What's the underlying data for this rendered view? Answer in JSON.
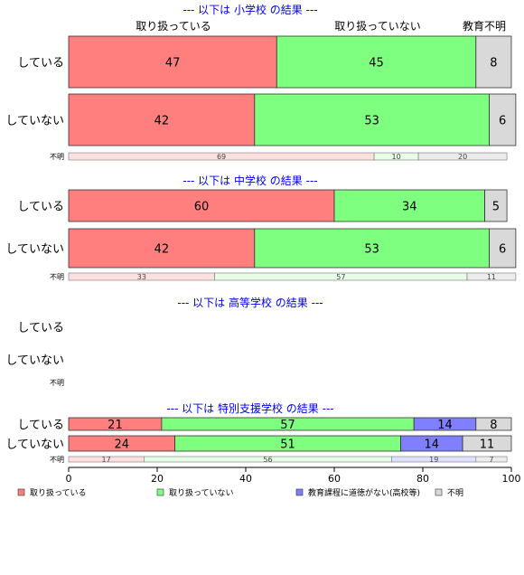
{
  "chart_data": {
    "type": "bar",
    "orientation": "horizontal-stacked",
    "xlim": [
      0,
      100
    ],
    "xticks": [
      0,
      20,
      40,
      60,
      80,
      100
    ],
    "grid": false,
    "legend_position": "bottom",
    "category_header_labels": [
      "取り扱っている",
      "取り扱っていない",
      "教育不明"
    ],
    "categories": [
      {
        "name": "取り扱っている",
        "color": "#ff7f7f",
        "light": "#ffe0e0"
      },
      {
        "name": "取り扱っていない",
        "color": "#7fff7f",
        "light": "#e6ffe6"
      },
      {
        "name": "教育課程に道徳がない(高校等)",
        "color": "#7f7fff",
        "light": "#e0e0ff"
      },
      {
        "name": "不明",
        "color": "#d9d9d9",
        "light": "#ececec"
      }
    ],
    "sections": [
      {
        "title": "--- 以下は 小学校 の結果 ---",
        "rows": [
          {
            "label": "している",
            "values": [
              47,
              45,
              0,
              8
            ]
          },
          {
            "label": "していない",
            "values": [
              42,
              53,
              0,
              6
            ]
          },
          {
            "label": "不明",
            "values": [
              69,
              10,
              0,
              20
            ]
          }
        ]
      },
      {
        "title": "--- 以下は 中学校 の結果 ---",
        "rows": [
          {
            "label": "している",
            "values": [
              60,
              34,
              0,
              5
            ]
          },
          {
            "label": "していない",
            "values": [
              42,
              53,
              0,
              6
            ]
          },
          {
            "label": "不明",
            "values": [
              33,
              57,
              0,
              11
            ]
          }
        ]
      },
      {
        "title": "--- 以下は 高等学校 の結果 ---",
        "rows": [
          {
            "label": "している",
            "values": []
          },
          {
            "label": "していない",
            "values": []
          },
          {
            "label": "不明",
            "values": []
          }
        ]
      },
      {
        "title": "--- 以下は 特別支援学校 の結果 ---",
        "rows": [
          {
            "label": "している",
            "values": [
              21,
              57,
              14,
              8
            ]
          },
          {
            "label": "していない",
            "values": [
              24,
              51,
              14,
              11
            ]
          },
          {
            "label": "不明",
            "values": [
              17,
              56,
              19,
              7
            ]
          }
        ]
      }
    ]
  }
}
